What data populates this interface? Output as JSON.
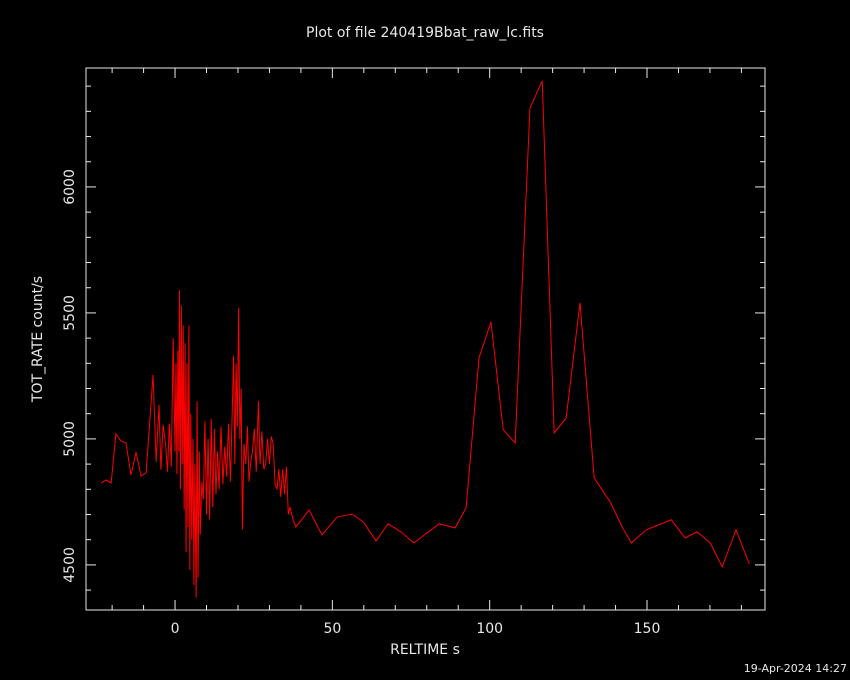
{
  "chart_data": {
    "type": "line",
    "title": "Plot of file 240419Bbat_raw_lc.fits",
    "x_label": "RELTIME  s",
    "y_label": "TOT_RATE  count/s",
    "timestamp": "19-Apr-2024 14:27",
    "color": "#ff0000",
    "xlim": [
      -28.3,
      187.5
    ],
    "ylim": [
      4321,
      6472
    ],
    "xticks": [
      0,
      50,
      100,
      150
    ],
    "yticks": [
      4500,
      5000,
      5500,
      6000
    ],
    "x_minor_ticks": [
      -20,
      -10,
      10,
      20,
      30,
      40,
      60,
      70,
      80,
      90,
      110,
      120,
      130,
      140,
      160,
      170,
      180
    ],
    "y_minor_ticks": [
      4400,
      4600,
      4700,
      4800,
      4900,
      5100,
      5200,
      5300,
      5400,
      5600,
      5700,
      5800,
      5900,
      6100,
      6200,
      6300,
      6400
    ],
    "x": [
      -23.5,
      -21.9,
      -20.3,
      -18.8,
      -17.2,
      -15.6,
      -14.0,
      -12.4,
      -10.8,
      -9.2,
      -7.6,
      -7.0,
      -6.0,
      -5.1,
      -4.5,
      -3.8,
      -3.0,
      -2.4,
      -1.8,
      -1.2,
      -0.6,
      0.0,
      0.3,
      0.6,
      0.9,
      1.2,
      1.4,
      1.7,
      2.0,
      2.3,
      2.6,
      2.9,
      3.2,
      3.5,
      3.8,
      4.1,
      4.4,
      4.7,
      5.0,
      5.3,
      5.7,
      6.0,
      6.3,
      6.7,
      7.0,
      7.3,
      7.7,
      8.0,
      8.5,
      9.0,
      9.5,
      10.0,
      10.5,
      11.0,
      11.5,
      12.0,
      12.5,
      13.0,
      13.5,
      14.0,
      14.6,
      15.2,
      15.8,
      16.4,
      17.0,
      17.6,
      18.2,
      18.6,
      19.0,
      19.4,
      19.8,
      20.2,
      20.6,
      21.0,
      21.4,
      21.9,
      22.5,
      23.0,
      23.5,
      24.0,
      24.6,
      25.2,
      25.8,
      26.5,
      27.0,
      27.6,
      28.2,
      28.8,
      29.4,
      30.0,
      30.6,
      31.2,
      31.8,
      32.4,
      33.0,
      33.6,
      34.2,
      34.8,
      35.4,
      36.0,
      36.5,
      37.5,
      38.4,
      42.6,
      46.7,
      51.5,
      56.3,
      59.8,
      63.9,
      67.7,
      71.8,
      75.9,
      83.9,
      89.0,
      92.5,
      96.6,
      100.4,
      104.3,
      108.1,
      112.8,
      116.7,
      120.5,
      124.3,
      128.7,
      133.2,
      138.3,
      142.1,
      145.0,
      149.7,
      157.7,
      162.1,
      165.9,
      170.1,
      173.9,
      178.3,
      182.5
    ],
    "values": [
      4825,
      4837,
      4825,
      5020,
      4992,
      4984,
      4857,
      4948,
      4853,
      4865,
      5147,
      5254,
      4909,
      5135,
      4877,
      5056,
      4980,
      4870,
      5060,
      4890,
      5400,
      4950,
      5300,
      4860,
      5350,
      4950,
      5590,
      4800,
      5530,
      4900,
      5450,
      4720,
      5380,
      4550,
      5300,
      4650,
      5450,
      4480,
      5100,
      4600,
      5000,
      4420,
      4900,
      4370,
      5150,
      4450,
      4950,
      4620,
      4830,
      4760,
      5070,
      4700,
      5000,
      4680,
      5080,
      4730,
      5040,
      4780,
      4950,
      4800,
      5050,
      4820,
      4970,
      4850,
      5060,
      4830,
      5120,
      5330,
      4900,
      5300,
      5050,
      5520,
      5000,
      5200,
      4640,
      4980,
      4900,
      5050,
      4830,
      4900,
      4950,
      5040,
      4870,
      5150,
      4900,
      5030,
      4880,
      4900,
      5000,
      4900,
      5010,
      4980,
      4820,
      4800,
      4880,
      4770,
      4880,
      4780,
      4890,
      4700,
      4730,
      4680,
      4650,
      4718,
      4619,
      4690,
      4702,
      4671,
      4595,
      4663,
      4631,
      4587,
      4663,
      4647,
      4726,
      5321,
      5464,
      5036,
      4984,
      6313,
      6421,
      5024,
      5083,
      5540,
      4845,
      4750,
      4651,
      4587,
      4639,
      4679,
      4607,
      4631,
      4587,
      4492,
      4639,
      4504
    ]
  }
}
